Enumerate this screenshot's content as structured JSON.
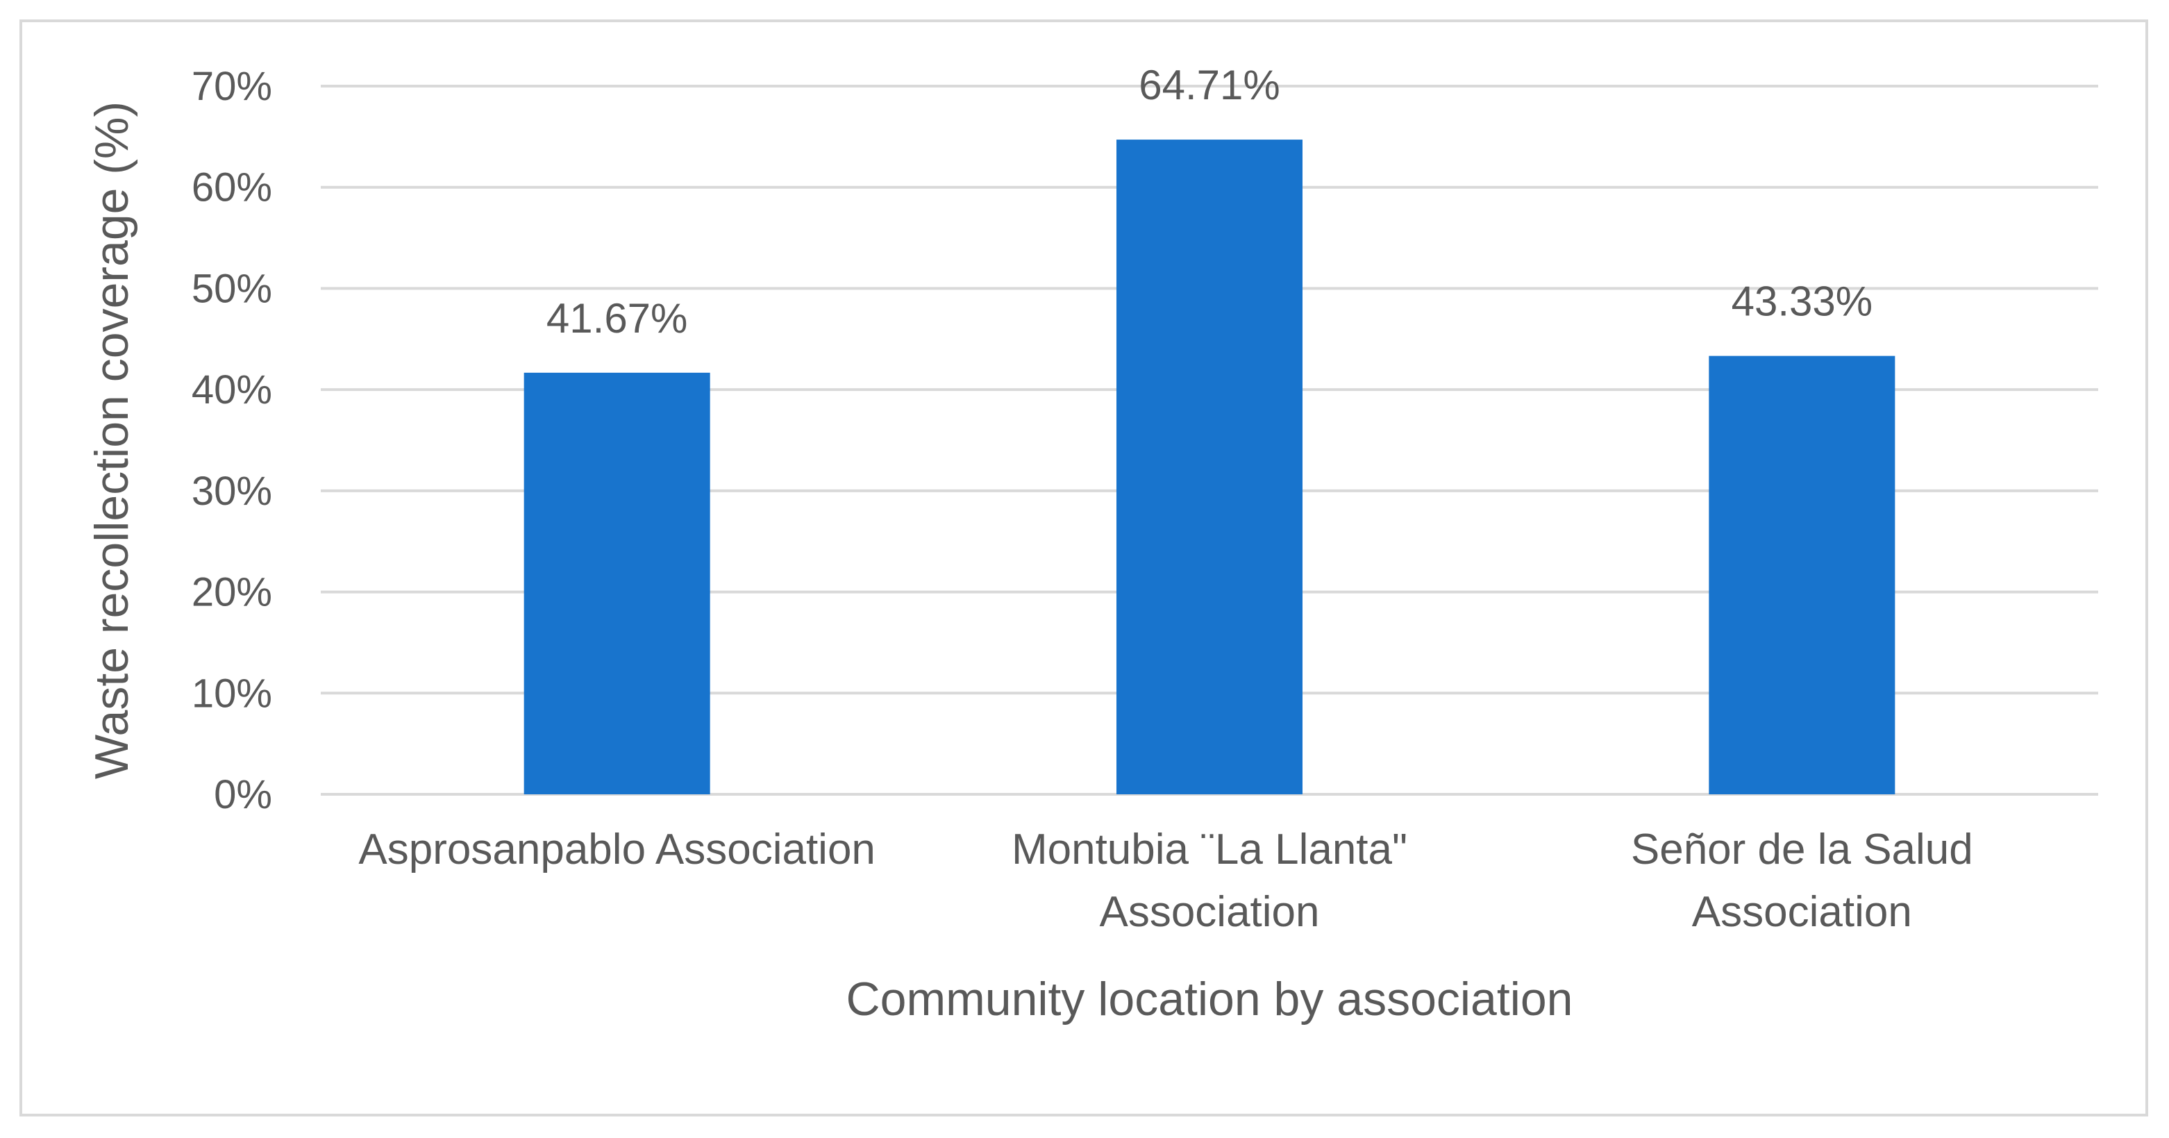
{
  "chart_data": {
    "type": "bar",
    "title": "",
    "xlabel": "Community location by association",
    "ylabel": "Waste recollection coverage (%)",
    "ylim": [
      0,
      70
    ],
    "yticks": [
      0,
      10,
      20,
      30,
      40,
      50,
      60,
      70
    ],
    "ytick_labels": [
      "0%",
      "10%",
      "20%",
      "30%",
      "40%",
      "50%",
      "60%",
      "70%"
    ],
    "categories": [
      "Asprosanpablo Association",
      "Montubia ¨La Llanta\" Association",
      "Señor de la Salud Association"
    ],
    "category_lines": [
      [
        "Asprosanpablo Association"
      ],
      [
        "Montubia ¨La Llanta\"",
        "Association"
      ],
      [
        "Señor de la Salud",
        "Association"
      ]
    ],
    "values": [
      41.67,
      64.71,
      43.33
    ],
    "data_labels": [
      "41.67%",
      "64.71%",
      "43.33%"
    ],
    "grid": true,
    "legend": "none",
    "colors": {
      "bar": "#1874cd",
      "grid": "#d9d9d9",
      "text": "#595959",
      "frame": "#d9d9d9"
    }
  }
}
